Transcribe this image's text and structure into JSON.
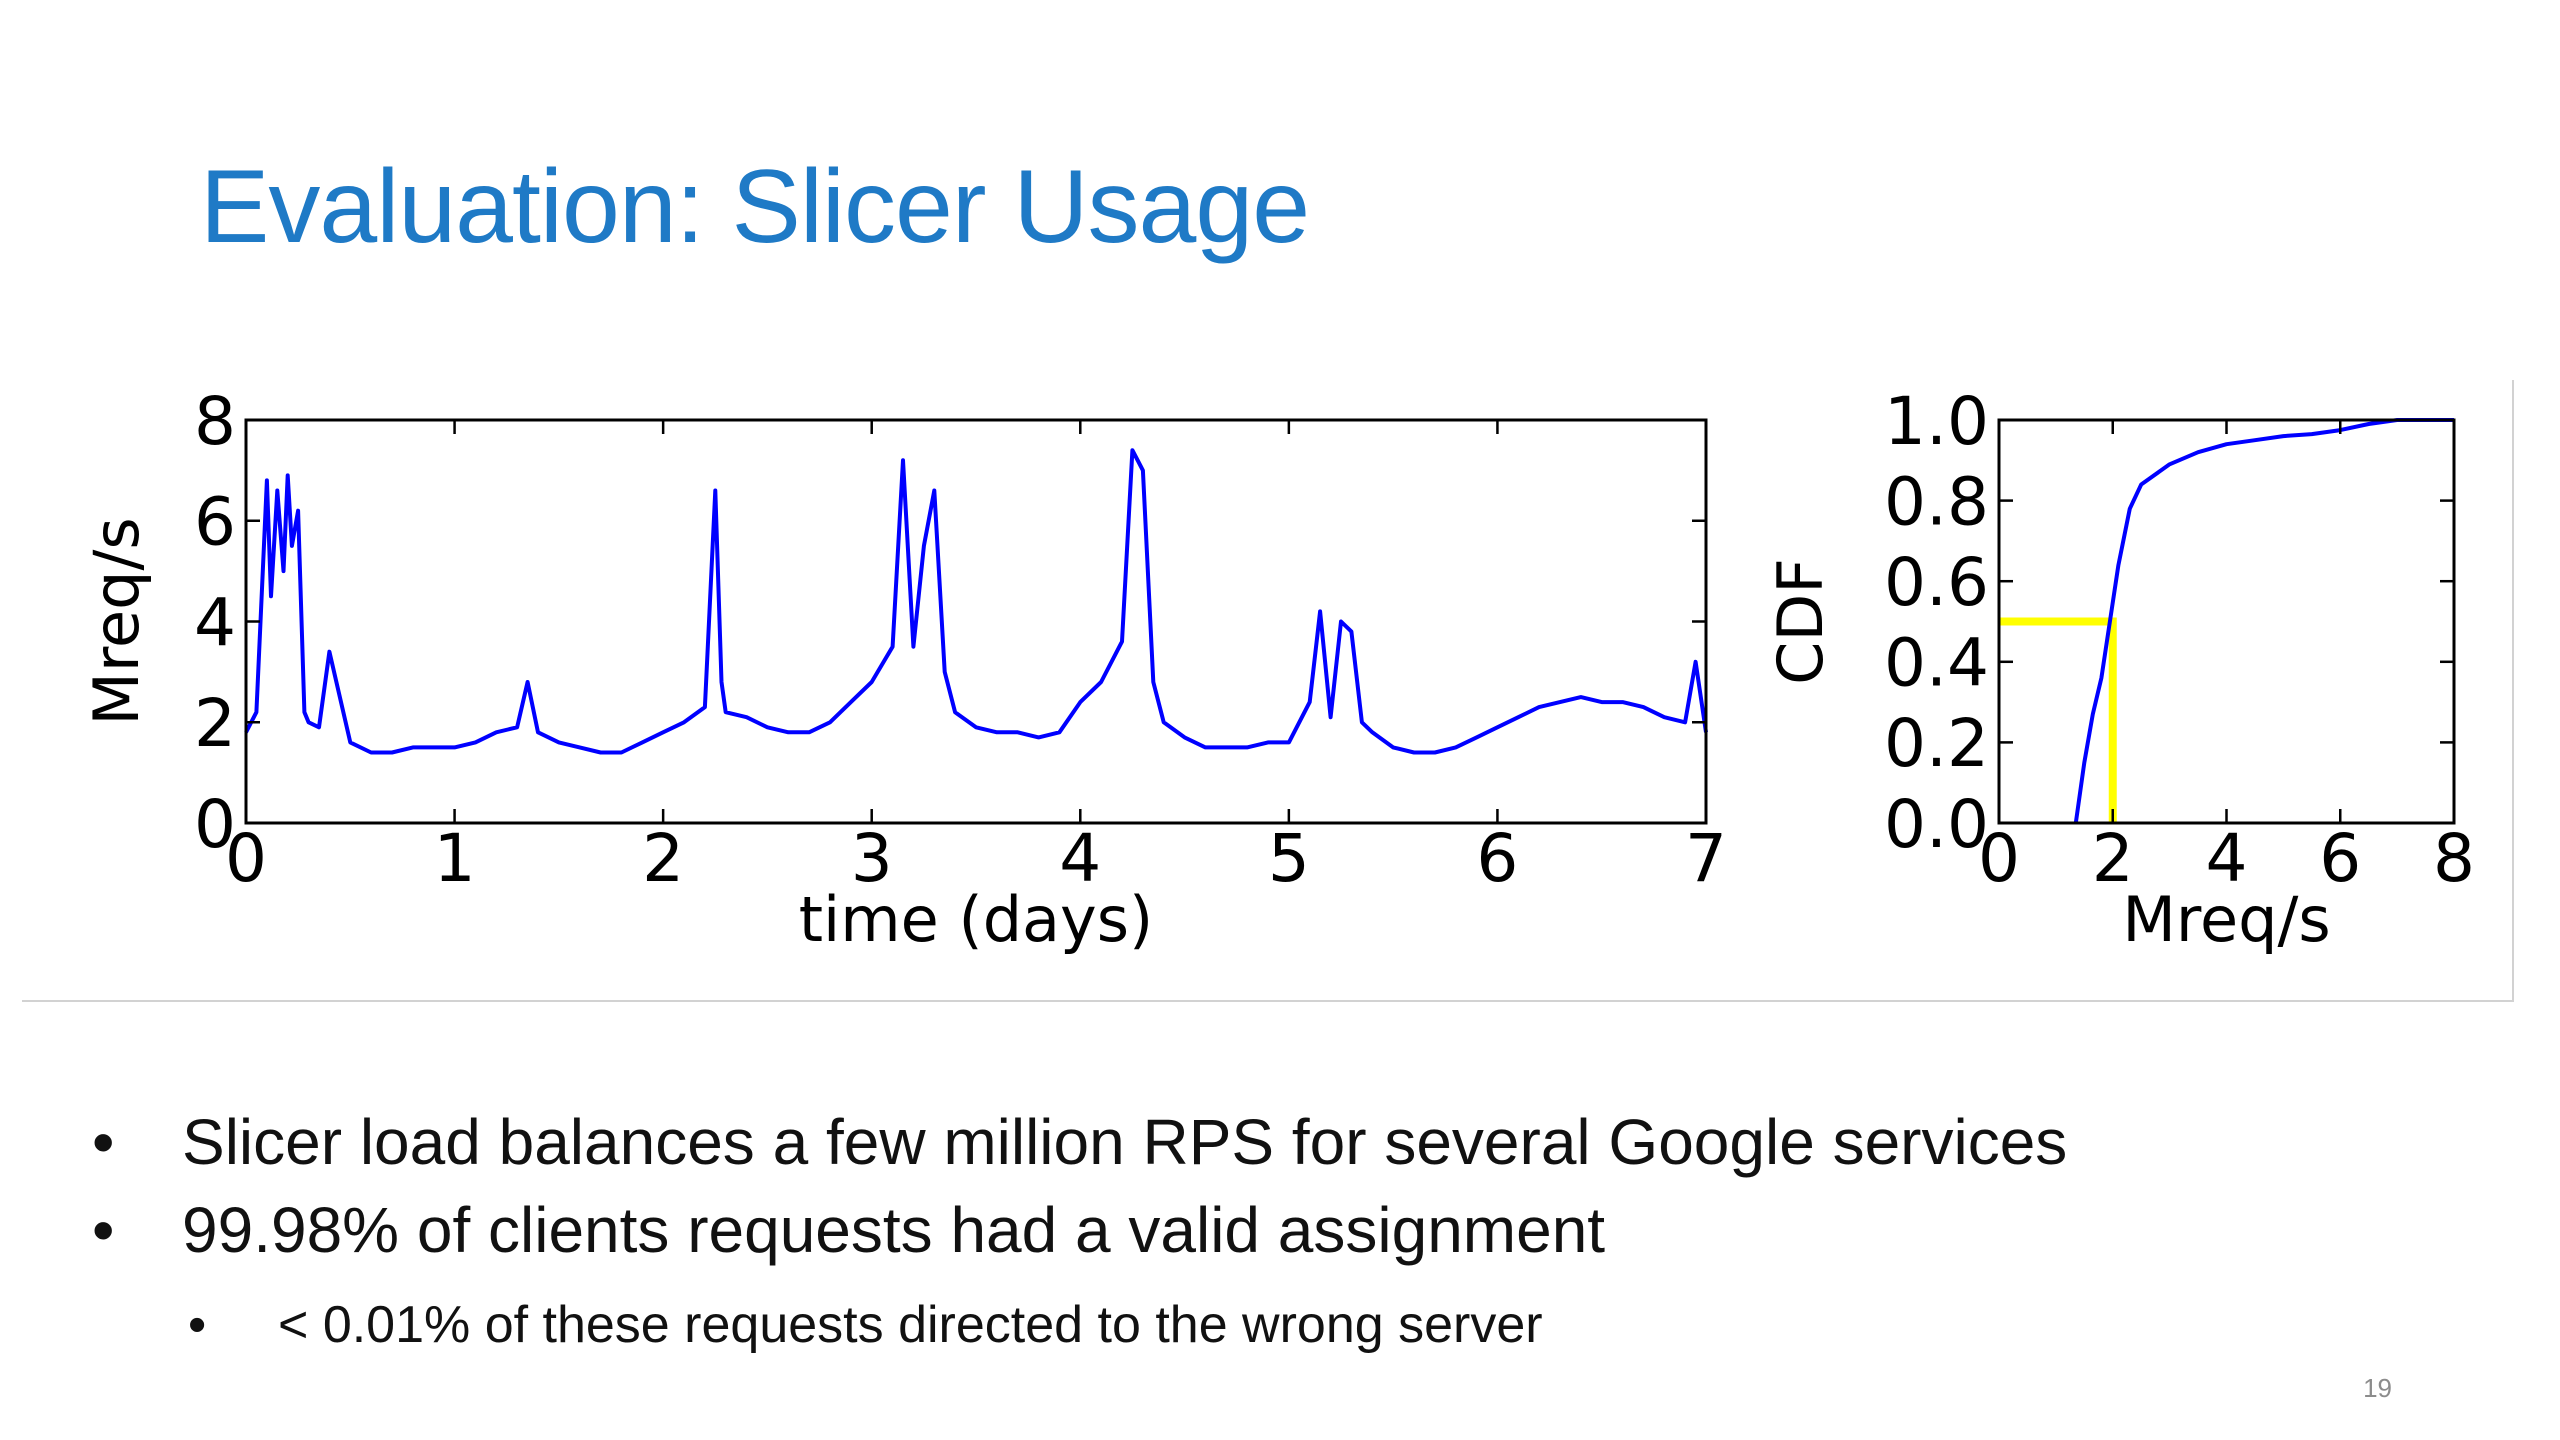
{
  "slide": {
    "title": "Evaluation: Slicer Usage",
    "page_number": "19",
    "bullets": [
      {
        "text": "Slicer load balances a few million RPS for several Google services",
        "level": 1
      },
      {
        "text": "99.98% of clients requests had a valid assignment",
        "level": 1
      },
      {
        "text": "< 0.01% of these requests directed to the wrong server",
        "level": 2
      }
    ],
    "bullet_char": "•"
  },
  "chart_data": [
    {
      "type": "line",
      "title": "",
      "xlabel": "time (days)",
      "ylabel": "Mreq/s",
      "xlim": [
        0,
        7
      ],
      "ylim": [
        0,
        8
      ],
      "xticks": [
        0,
        1,
        2,
        3,
        4,
        5,
        6,
        7
      ],
      "yticks": [
        0,
        2,
        4,
        6,
        8
      ],
      "grid": false,
      "line_color": "#0000ff",
      "series": [
        {
          "x": [
            0,
            0.05,
            0.1,
            0.12,
            0.15,
            0.18,
            0.2,
            0.22,
            0.25,
            0.28,
            0.3,
            0.35,
            0.4,
            0.5,
            0.6,
            0.7,
            0.8,
            0.9,
            1.0,
            1.1,
            1.2,
            1.3,
            1.35,
            1.4,
            1.5,
            1.6,
            1.7,
            1.8,
            1.9,
            2.0,
            2.1,
            2.2,
            2.25,
            2.28,
            2.3,
            2.4,
            2.5,
            2.6,
            2.7,
            2.8,
            2.9,
            3.0,
            3.1,
            3.15,
            3.2,
            3.25,
            3.3,
            3.35,
            3.4,
            3.5,
            3.6,
            3.7,
            3.8,
            3.9,
            4.0,
            4.1,
            4.2,
            4.25,
            4.3,
            4.35,
            4.4,
            4.5,
            4.6,
            4.7,
            4.8,
            4.9,
            5.0,
            5.1,
            5.15,
            5.2,
            5.25,
            5.3,
            5.35,
            5.4,
            5.5,
            5.6,
            5.7,
            5.8,
            5.9,
            6.0,
            6.1,
            6.2,
            6.3,
            6.4,
            6.5,
            6.6,
            6.7,
            6.8,
            6.9,
            6.95,
            7.0
          ],
          "y": [
            1.8,
            2.2,
            6.8,
            4.5,
            6.6,
            5.0,
            6.9,
            5.5,
            6.2,
            2.2,
            2.0,
            1.9,
            3.4,
            1.6,
            1.4,
            1.4,
            1.5,
            1.5,
            1.5,
            1.6,
            1.8,
            1.9,
            2.8,
            1.8,
            1.6,
            1.5,
            1.4,
            1.4,
            1.6,
            1.8,
            2.0,
            2.3,
            6.6,
            2.8,
            2.2,
            2.1,
            1.9,
            1.8,
            1.8,
            2.0,
            2.4,
            2.8,
            3.5,
            7.2,
            3.5,
            5.5,
            6.6,
            3.0,
            2.2,
            1.9,
            1.8,
            1.8,
            1.7,
            1.8,
            2.4,
            2.8,
            3.6,
            7.4,
            7.0,
            2.8,
            2.0,
            1.7,
            1.5,
            1.5,
            1.5,
            1.6,
            1.6,
            2.4,
            4.2,
            2.1,
            4.0,
            3.8,
            2.0,
            1.8,
            1.5,
            1.4,
            1.4,
            1.5,
            1.7,
            1.9,
            2.1,
            2.3,
            2.4,
            2.5,
            2.4,
            2.4,
            2.3,
            2.1,
            2.0,
            3.2,
            1.8
          ]
        }
      ]
    },
    {
      "type": "line",
      "title": "",
      "xlabel": "Mreq/s",
      "ylabel": "CDF",
      "xlim": [
        0,
        8
      ],
      "ylim": [
        0,
        1.0
      ],
      "xticks": [
        0,
        2,
        4,
        6,
        8
      ],
      "yticks": [
        "0.0",
        "0.2",
        "0.4",
        "0.6",
        "0.8",
        "1.0"
      ],
      "grid": false,
      "line_color": "#0000ff",
      "series": [
        {
          "x": [
            1.35,
            1.5,
            1.65,
            1.8,
            1.95,
            2.1,
            2.3,
            2.5,
            3.0,
            3.5,
            4.0,
            4.5,
            5.0,
            5.5,
            6.0,
            6.5,
            7.0,
            7.5,
            8.0
          ],
          "y": [
            0.0,
            0.15,
            0.27,
            0.36,
            0.5,
            0.64,
            0.78,
            0.84,
            0.89,
            0.92,
            0.94,
            0.95,
            0.96,
            0.965,
            0.975,
            0.99,
            1.0,
            1.0,
            1.0
          ]
        }
      ],
      "markers": [
        {
          "name": "median",
          "x": 2.0,
          "y": 0.5,
          "color": "#ffff00"
        }
      ]
    }
  ]
}
